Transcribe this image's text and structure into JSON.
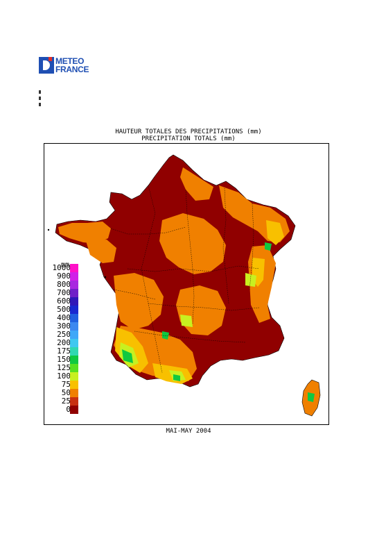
{
  "logo": {
    "line1": "METEO",
    "line2": "FRANCE"
  },
  "title": {
    "line1": "HAUTEUR TOTALES DES PRECIPITATIONS (mm)",
    "line2": "PRECIPITATION TOTALS (mm)"
  },
  "legend": {
    "unit": "mm",
    "items": [
      {
        "label": "1000",
        "color": "#ff10c8"
      },
      {
        "label": "900",
        "color": "#d020e8"
      },
      {
        "label": "800",
        "color": "#a828e0"
      },
      {
        "label": "700",
        "color": "#7020c8"
      },
      {
        "label": "600",
        "color": "#3018b8"
      },
      {
        "label": "500",
        "color": "#1828d0"
      },
      {
        "label": "400",
        "color": "#2060e0"
      },
      {
        "label": "300",
        "color": "#3c88f0"
      },
      {
        "label": "250",
        "color": "#40a8f8"
      },
      {
        "label": "200",
        "color": "#40c8f0"
      },
      {
        "label": "175",
        "color": "#30d8b0"
      },
      {
        "label": "150",
        "color": "#10c840"
      },
      {
        "label": "125",
        "color": "#58e020"
      },
      {
        "label": "100",
        "color": "#c8f020"
      },
      {
        "label": "75",
        "color": "#f8c000"
      },
      {
        "label": "50",
        "color": "#f08000"
      },
      {
        "label": "25",
        "color": "#c83010"
      },
      {
        "label": "0",
        "color": "#900000"
      }
    ]
  },
  "period": "MAI-MAY 2004"
}
